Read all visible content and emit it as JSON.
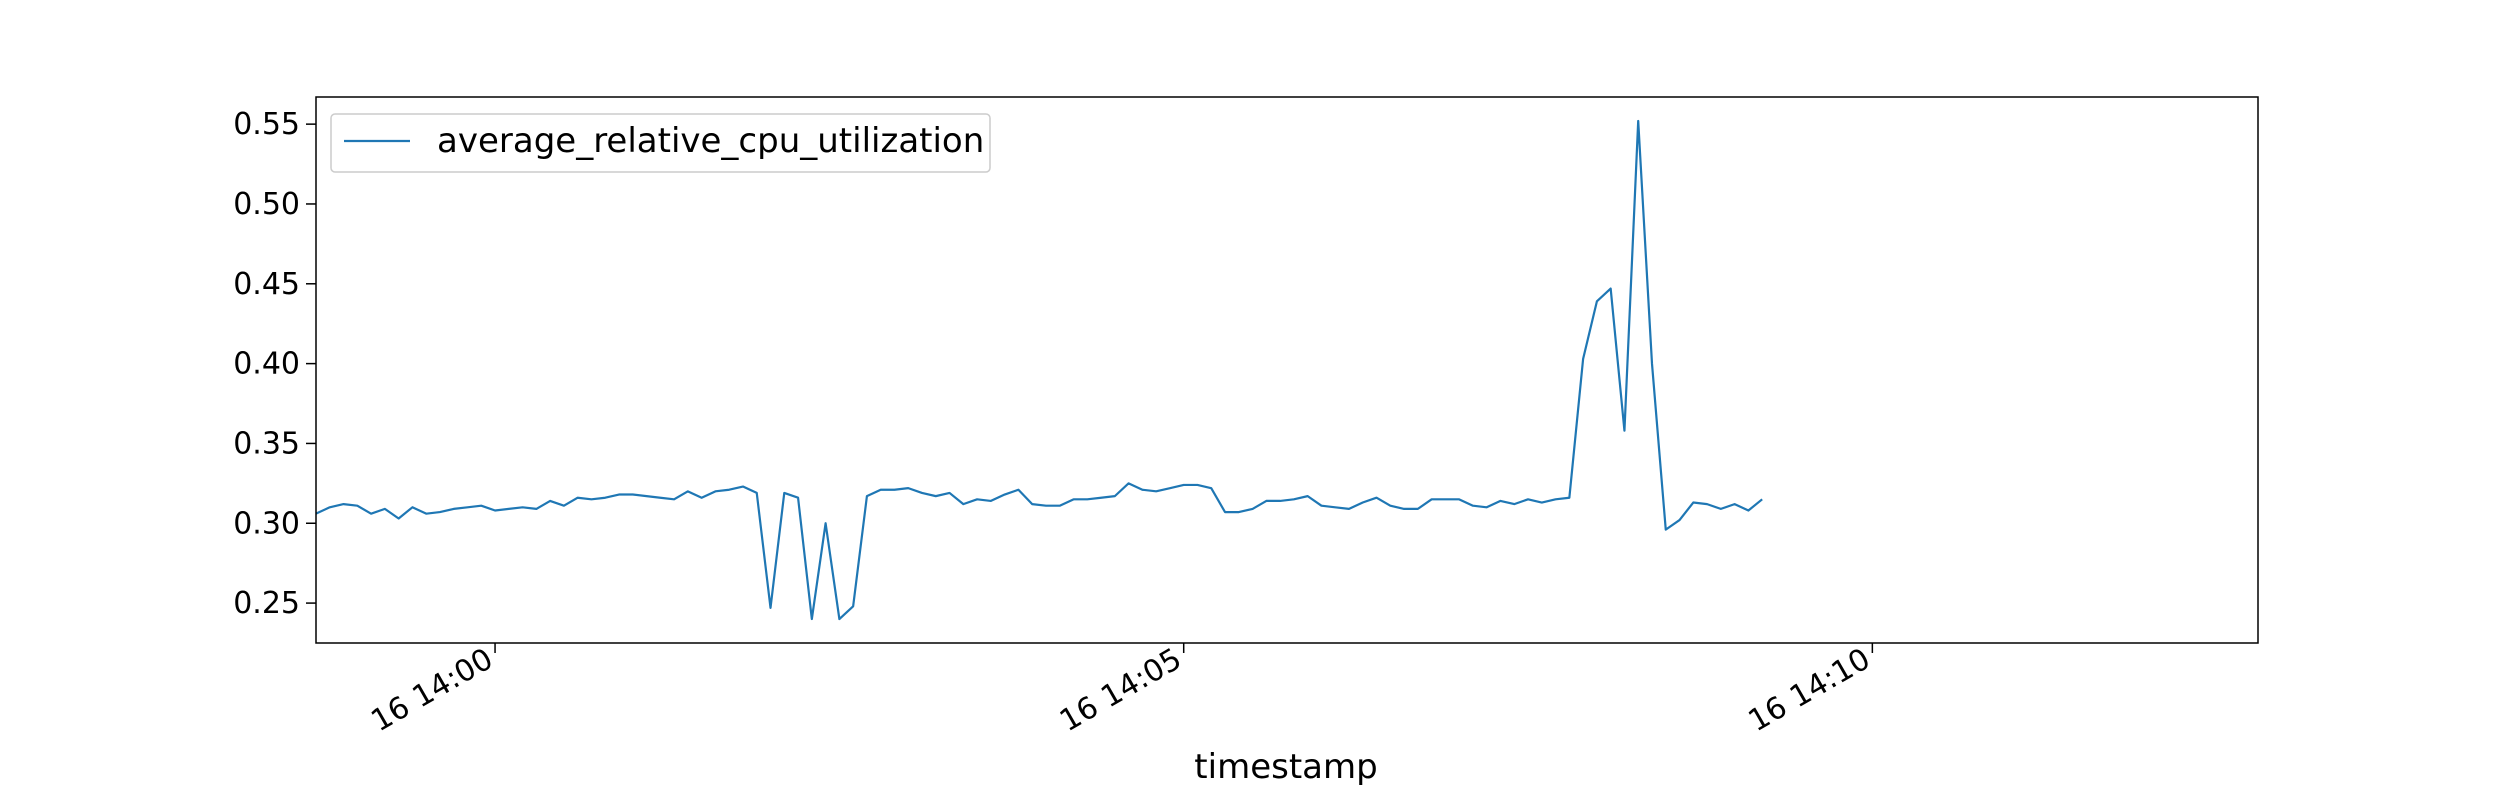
{
  "chart_data": {
    "type": "line",
    "title": "",
    "xlabel": "timestamp",
    "ylabel": "",
    "x_axis": {
      "type": "time",
      "range": [
        "16 13:58:42",
        "16 14:12:48"
      ],
      "ticks": [
        {
          "value": "16 14:00:00",
          "label": "16 14:00"
        },
        {
          "value": "16 14:05:00",
          "label": "16 14:05"
        },
        {
          "value": "16 14:10:00",
          "label": "16 14:10"
        }
      ]
    },
    "ylim": [
      0.225,
      0.567
    ],
    "yticks": [
      0.25,
      0.3,
      0.35,
      0.4,
      0.45,
      0.5,
      0.55
    ],
    "ytick_labels": [
      "0.25",
      "0.30",
      "0.35",
      "0.40",
      "0.45",
      "0.50",
      "0.55"
    ],
    "grid": false,
    "legend": {
      "position": "top-left",
      "entries": [
        "average_relative_cpu_utilization"
      ]
    },
    "series": [
      {
        "name": "average_relative_cpu_utilization",
        "color": "#1f77b4",
        "x_start": "16 13:58:42",
        "step_seconds": 6,
        "values": [
          0.306,
          0.31,
          0.312,
          0.311,
          0.306,
          0.309,
          0.303,
          0.31,
          0.306,
          0.307,
          0.309,
          0.31,
          0.311,
          0.308,
          0.309,
          0.31,
          0.309,
          0.314,
          0.311,
          0.316,
          0.315,
          0.316,
          0.318,
          0.318,
          0.317,
          0.316,
          0.315,
          0.32,
          0.316,
          0.32,
          0.321,
          0.323,
          0.319,
          0.247,
          0.319,
          0.316,
          0.24,
          0.3,
          0.24,
          0.248,
          0.317,
          0.321,
          0.321,
          0.322,
          0.319,
          0.317,
          0.319,
          0.312,
          0.315,
          0.314,
          0.318,
          0.321,
          0.312,
          0.311,
          0.311,
          0.315,
          0.315,
          0.316,
          0.317,
          0.325,
          0.321,
          0.32,
          0.322,
          0.324,
          0.324,
          0.322,
          0.307,
          0.307,
          0.309,
          0.314,
          0.314,
          0.315,
          0.317,
          0.311,
          0.31,
          0.309,
          0.313,
          0.316,
          0.311,
          0.309,
          0.309,
          0.315,
          0.315,
          0.315,
          0.311,
          0.31,
          0.314,
          0.312,
          0.315,
          0.313,
          0.315,
          0.316,
          0.403,
          0.439,
          0.447,
          0.358,
          0.552,
          0.4,
          0.296,
          0.302,
          0.313,
          0.312,
          0.309,
          0.312,
          0.308,
          0.315
        ]
      }
    ]
  }
}
